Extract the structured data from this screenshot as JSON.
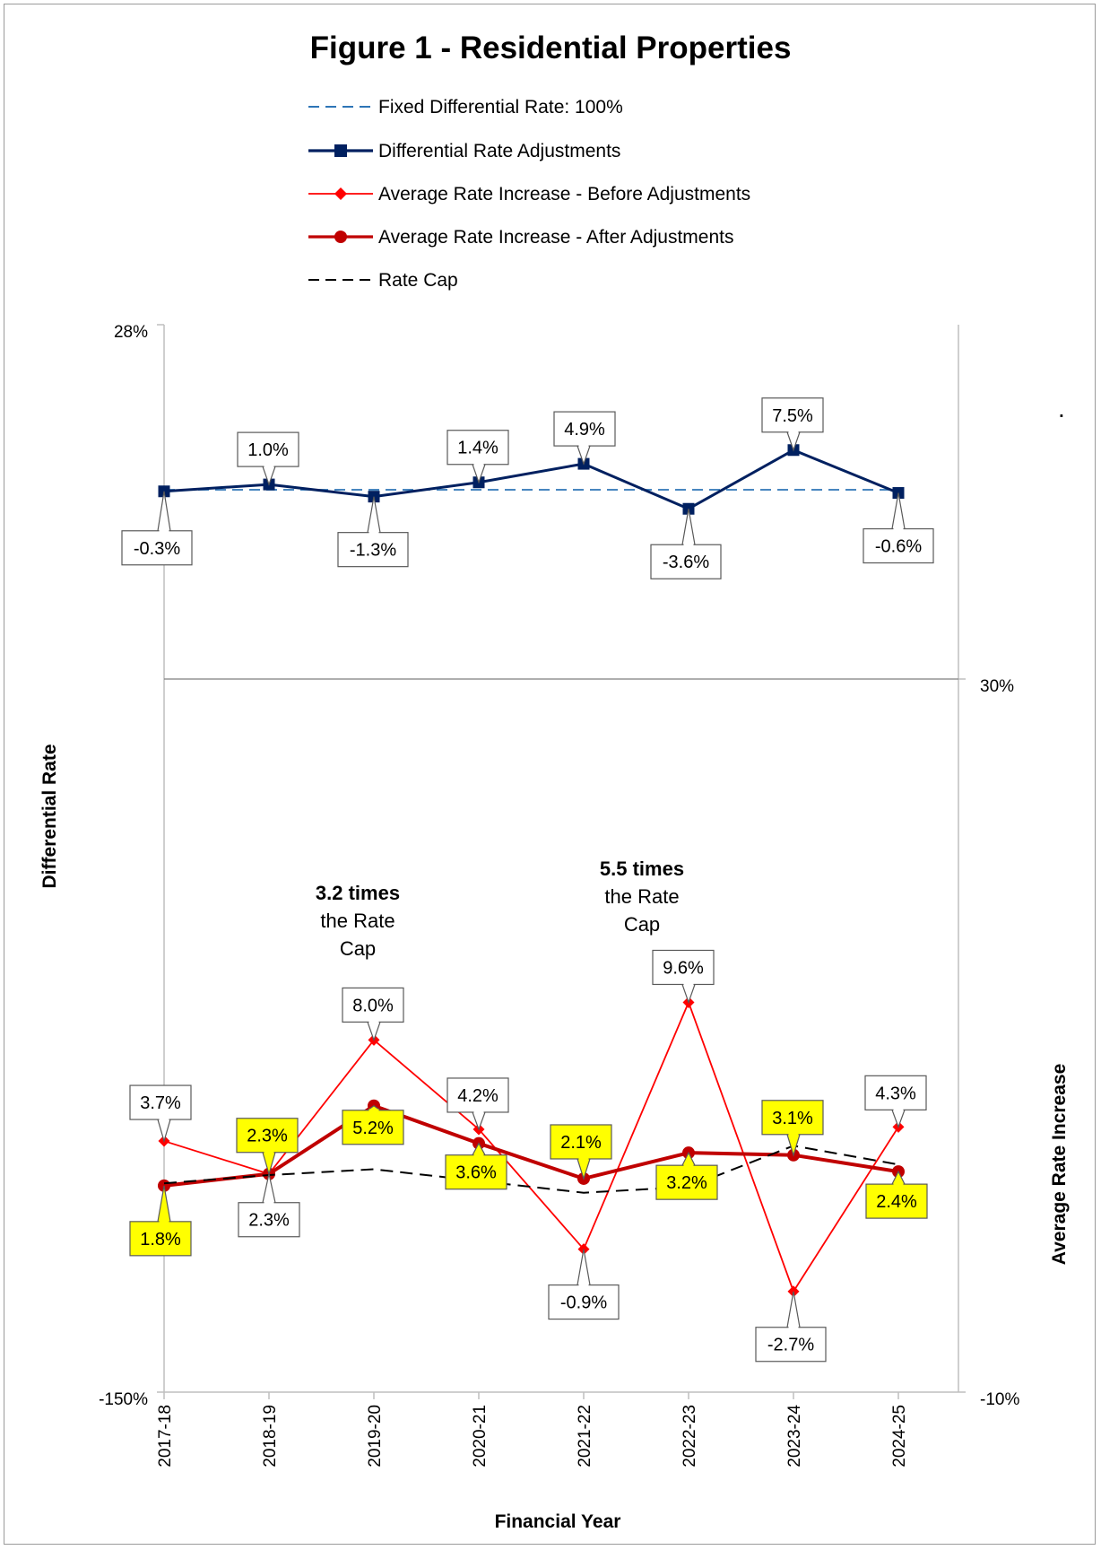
{
  "chart_data": {
    "type": "line",
    "title": "Figure 1 - Residential Properties",
    "xlabel": "Financial Year",
    "ylabel_left": "Differential Rate",
    "ylabel_right": "Average Rate Increase",
    "categories": [
      "2017-18",
      "2018-19",
      "2019-20",
      "2020-21",
      "2021-22",
      "2022-23",
      "2023-24",
      "2024-25"
    ],
    "left_axis": {
      "ylim": [
        -150,
        28
      ],
      "tick_labels": {
        "max": "28%",
        "min": "-150%"
      }
    },
    "right_axis": {
      "ylim": [
        -10,
        30
      ],
      "tick_labels": {
        "max": "30%",
        "min": "-10%"
      }
    },
    "series": [
      {
        "name": "Fixed Differential Rate:  100%",
        "axis": "left",
        "color": "#2E75B6",
        "style": "dashed",
        "marker": "none",
        "values": [
          0,
          0,
          0,
          0,
          0,
          0,
          0,
          0
        ]
      },
      {
        "name": "Differential Rate Adjustments",
        "axis": "left",
        "color": "#002060",
        "style": "solid",
        "marker": "square",
        "values": [
          -0.3,
          1.0,
          -1.3,
          1.4,
          4.9,
          -3.6,
          7.5,
          -0.6
        ],
        "labels": [
          "-0.3%",
          "1.0%",
          "-1.3%",
          "1.4%",
          "4.9%",
          "-3.6%",
          "7.5%",
          "-0.6%"
        ]
      },
      {
        "name": "Average Rate Increase - Before Adjustments",
        "axis": "right",
        "color": "#FF0000",
        "style": "solid",
        "marker": "diamond",
        "values": [
          3.7,
          2.3,
          8.0,
          4.2,
          -0.9,
          9.6,
          -2.7,
          4.3
        ],
        "labels": [
          "3.7%",
          "2.3%",
          "8.0%",
          "4.2%",
          "-0.9%",
          "9.6%",
          "-2.7%",
          "4.3%"
        ]
      },
      {
        "name": "Average Rate Increase - After Adjustments",
        "axis": "right",
        "color": "#C00000",
        "style": "solid",
        "marker": "circle",
        "values": [
          1.8,
          2.3,
          5.2,
          3.6,
          2.1,
          3.2,
          3.1,
          2.4
        ],
        "labels": [
          "1.8%",
          "2.3%",
          "5.2%",
          "3.6%",
          "2.1%",
          "3.2%",
          "3.1%",
          "2.4%"
        ]
      },
      {
        "name": "Rate Cap",
        "axis": "right",
        "color": "#000000",
        "style": "dashed",
        "marker": "none",
        "values": [
          1.9,
          2.25,
          2.5,
          2.0,
          1.5,
          1.75,
          3.5,
          2.7
        ]
      }
    ],
    "annotations": [
      {
        "bold": "3.2 times",
        "rest": [
          "the Rate",
          "Cap"
        ]
      },
      {
        "bold": "5.5 times",
        "rest": [
          "the Rate",
          "Cap"
        ]
      }
    ],
    "legend_position": "top",
    "grid": false,
    "stray_mark": "."
  }
}
